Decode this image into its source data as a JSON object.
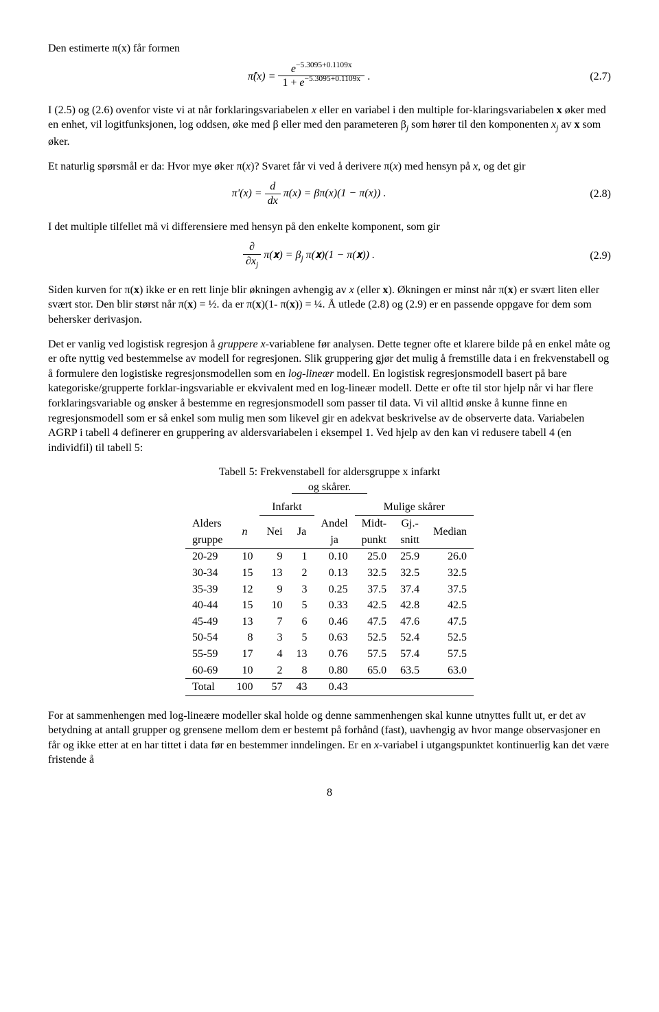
{
  "intro_line": "Den estimerte π(x) får formen",
  "eq27": {
    "lhs": "π̂(x) =",
    "num_left": "e",
    "den_left_pre": "1 + ",
    "den_left_e": "e",
    "exponent": "−5.3095+0.1109x",
    "tail": ".",
    "num": "(2.7)"
  },
  "para1_a": "I (2.5) og (2.6) ovenfor viste vi at når forklaringsvariabelen ",
  "para1_b": " eller en variabel i den multiple for-klaringsvariabelen ",
  "para1_c": " øker med en enhet, vil logitfunksjonen, log oddsen, øke med β eller med den parameteren β",
  "para1_c2": " som hører til den komponenten ",
  "para1_d": " av ",
  "para1_e": " som øker.",
  "para2_a": "Et naturlig spørsmål er da: Hvor mye øker π(",
  "para2_b": ")? Svaret får vi ved å derivere π(",
  "para2_c": ") med hensyn på ",
  "para2_d": ", og det gir",
  "eq28": {
    "pre": "π'(x) = ",
    "dnum": "d",
    "dden_pre": "d",
    "dden_x": "x",
    "post": " π(x) = βπ(x)(1 − π(x)) .",
    "num": "(2.8)"
  },
  "para3": "I det multiple tilfellet må vi differensiere med hensyn på den enkelte komponent, som gir",
  "eq29": {
    "dnum": "∂",
    "dden_pre": "∂",
    "dden_x": "x",
    "dden_sub": "j",
    "mid": " π(𝐱) = β",
    "mid_sub": "j",
    "post": " π(𝐱)(1 − π(𝐱)) .",
    "num": "(2.9)"
  },
  "para4": "Siden kurven for π(𝐱) ikke er en rett linje blir økningen avhengig av x (eller 𝐱). Økningen er minst når π(𝐱) er svært liten eller svært stor. Den blir størst når π(𝐱) = ½. da er π(𝐱)(1- π(𝐱)) = ¼. Å utlede (2.8) og (2.9) er en passende oppgave for dem som behersker derivasjon.",
  "para5": "Det er vanlig ved logistisk regresjon å gruppere x-variablene før analysen. Dette tegner ofte et klarere bilde på en enkel måte og er ofte nyttig ved bestemmelse av modell for regresjonen. Slik gruppering gjør det mulig å fremstille data i en frekvenstabell og å formulere den logistiske regresjonsmodellen som en log-lineær modell. En logistisk regresjonsmodell basert på bare kategoriske/grupperte forklar-ingsvariable er ekvivalent med en log-lineær modell. Dette er ofte til stor hjelp når vi har flere forklaringsvariable og ønsker å bestemme en regresjonsmodell som passer til data. Vi vil alltid ønske å kunne finne en regresjonsmodell som er så enkel som mulig men som likevel gir en adekvat beskrivelse av de observerte data. Variabelen AGRP i tabell 4 definerer en gruppering av aldersvariabelen i eksempel 1. Ved hjelp av den kan vi redusere tabell 4 (en individfil) til tabell 5:",
  "table": {
    "caption_l1": "Tabell 5: Frekvenstabell for aldersgruppe x infarkt",
    "caption_l2": "og skårer.",
    "head_infarkt": "Infarkt",
    "head_mulige": "Mulige skårer",
    "head_alders1": "Alders",
    "head_alders2": "gruppe",
    "head_n": "n",
    "head_nei": "Nei",
    "head_ja": "Ja",
    "head_andel1": "Andel",
    "head_andel2": "ja",
    "head_midt1": "Midt-",
    "head_midt2": "punkt",
    "head_gj1": "Gj.-",
    "head_gj2": "snitt",
    "head_median": "Median",
    "rows": [
      [
        "20-29",
        "10",
        "9",
        "1",
        "0.10",
        "25.0",
        "25.9",
        "26.0"
      ],
      [
        "30-34",
        "15",
        "13",
        "2",
        "0.13",
        "32.5",
        "32.5",
        "32.5"
      ],
      [
        "35-39",
        "12",
        "9",
        "3",
        "0.25",
        "37.5",
        "37.4",
        "37.5"
      ],
      [
        "40-44",
        "15",
        "10",
        "5",
        "0.33",
        "42.5",
        "42.8",
        "42.5"
      ],
      [
        "45-49",
        "13",
        "7",
        "6",
        "0.46",
        "47.5",
        "47.6",
        "47.5"
      ],
      [
        "50-54",
        "8",
        "3",
        "5",
        "0.63",
        "52.5",
        "52.4",
        "52.5"
      ],
      [
        "55-59",
        "17",
        "4",
        "13",
        "0.76",
        "57.5",
        "57.4",
        "57.5"
      ],
      [
        "60-69",
        "10",
        "2",
        "8",
        "0.80",
        "65.0",
        "63.5",
        "63.0"
      ]
    ],
    "total": [
      "Total",
      "100",
      "57",
      "43",
      "0.43",
      "",
      "",
      ""
    ]
  },
  "para6": "For at sammenhengen med log-lineære modeller skal holde og denne sammenhengen skal kunne utnyttes fullt ut, er det av betydning at antall grupper og grensene mellom dem er bestemt på forhånd (fast), uavhengig av hvor mange observasjoner en får og ikke etter at en har tittet i data før en bestemmer inndelingen. Er en x-variabel i utgangspunktet kontinuerlig kan det være fristende å",
  "page_number": "8"
}
